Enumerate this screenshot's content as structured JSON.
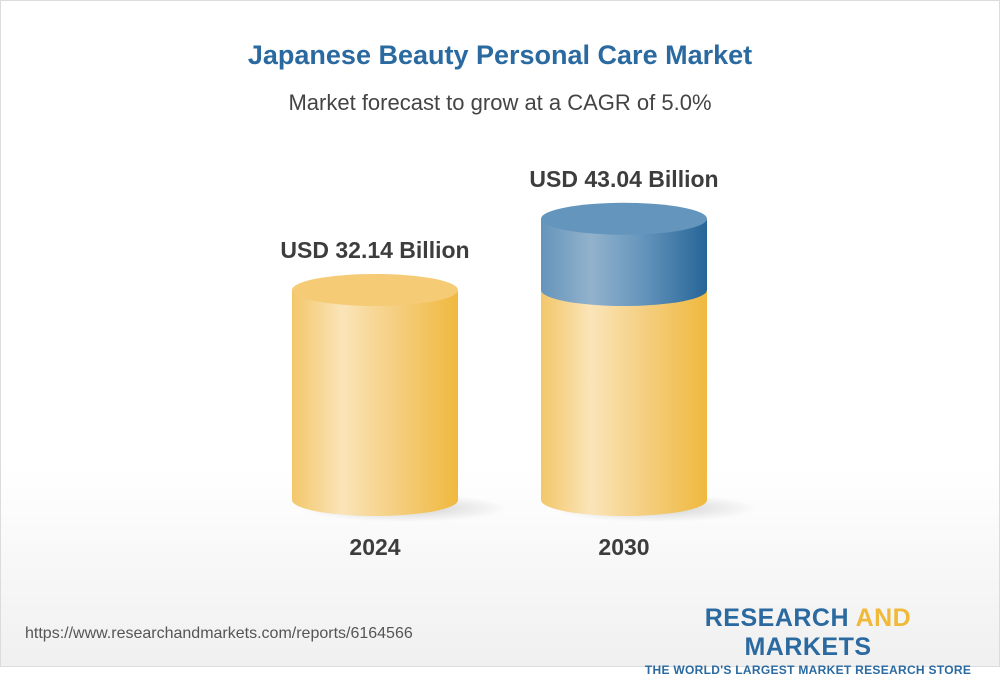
{
  "chart_data": {
    "type": "bar",
    "style": "3d-cylinder",
    "title": "Japanese Beauty Personal Care Market",
    "subtitle": "Market forecast to grow at a CAGR of 5.0%",
    "categories": [
      "2024",
      "2030"
    ],
    "values": [
      32.14,
      43.04
    ],
    "data_labels": [
      "USD 32.14 Billion",
      "USD 43.04 Billion"
    ],
    "colors": {
      "base": "#f2bb45",
      "growth": "#2a6aa0"
    },
    "grid": false,
    "legend": "none"
  },
  "footer": {
    "url": "https://www.researchandmarkets.com/reports/6164566",
    "logo_part1": "RESEARCH ",
    "logo_part2": "AND",
    "logo_part3": " MARKETS",
    "tagline": "THE WORLD'S LARGEST MARKET RESEARCH STORE"
  }
}
